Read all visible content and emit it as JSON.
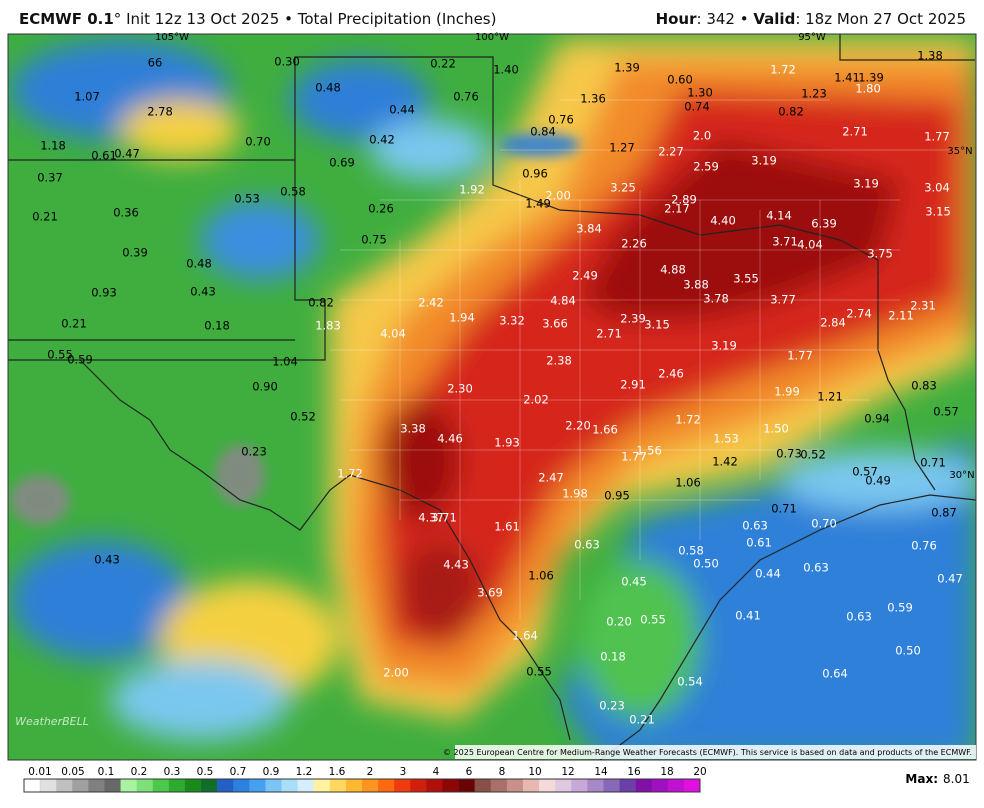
{
  "header": {
    "model": "ECMWF 0.1",
    "degree": "°",
    "run": "Init 12z 13 Oct 2025",
    "separator": "•",
    "field": "Total Precipitation (Inches)",
    "hour_label": "Hour",
    "hour": "342",
    "valid_label": "Valid",
    "valid": "18z Mon 27 Oct 2025"
  },
  "map": {
    "longitude_labels": [
      "105°W",
      "100°W",
      "95°W"
    ],
    "latitude_labels": [
      "35°N",
      "30°N"
    ],
    "point_values": [
      "0.30",
      "0.22",
      "1.40",
      "1.39",
      "1.72",
      "1.41",
      "1.39",
      "1.38",
      "66",
      "1.07",
      "2.78",
      "0.48",
      "0.76",
      "1.36",
      "0.60",
      "1.30",
      "1.23",
      "1.80",
      "0.44",
      "0.74",
      "0.82",
      "0.76",
      "0.84",
      "0.70",
      "0.42",
      "1.18",
      "0.61",
      "0.47",
      "2.71",
      "1.77",
      "1.27",
      "2.27",
      "2.0",
      "0.69",
      "3.19",
      "2.59",
      "0.37",
      "0.96",
      "3.25",
      "3.19",
      "3.04",
      "1.92",
      "2.00",
      "0.58",
      "0.53",
      "1.49",
      "2.89",
      "2.17",
      "3.15",
      "0.21",
      "0.36",
      "0.26",
      "4.40",
      "4.14",
      "6.39",
      "3.84",
      "0.75",
      "2.26",
      "3.71",
      "4.04",
      "3.75",
      "0.39",
      "0.48",
      "4.88",
      "2.49",
      "3.55",
      "3.88",
      "0.93",
      "0.43",
      "4.84",
      "3.78",
      "3.77",
      "2.31",
      "0.82",
      "2.42",
      "1.94",
      "3.32",
      "3.66",
      "2.39",
      "3.15",
      "2.74",
      "2.11",
      "2.84",
      "0.21",
      "0.18",
      "1.83",
      "4.04",
      "2.71",
      "3.19",
      "0.55",
      "0.59",
      "1.04",
      "2.38",
      "1.77",
      "2.46",
      "2.91",
      "0.83",
      "0.90",
      "2.30",
      "1.99",
      "1.21",
      "2.02",
      "0.57",
      "0.52",
      "1.72",
      "0.94",
      "3.38",
      "2.20",
      "1.66",
      "1.50",
      "4.46",
      "1.93",
      "1.53",
      "1.56",
      "1.77",
      "0.73",
      "0.52",
      "0.23",
      "1.42",
      "0.71",
      "0.57",
      "0.49",
      "1.72",
      "2.47",
      "1.06",
      "1.98",
      "0.95",
      "4.37",
      "3.71",
      "0.71",
      "0.87",
      "1.61",
      "0.63",
      "0.70",
      "0.43",
      "4.43",
      "0.63",
      "0.61",
      "0.76",
      "0.58",
      "0.50",
      "1.06",
      "0.44",
      "0.63",
      "0.47",
      "0.45",
      "3.69",
      "0.41",
      "0.59",
      "0.63",
      "0.20",
      "0.55",
      "1.64",
      "0.18",
      "0.50",
      "0.55",
      "2.00",
      "0.54",
      "0.64",
      "0.23",
      "0.21"
    ],
    "watermark": "WeatherBELL",
    "copyright": "© 2025 European Centre for Medium-Range Weather Forecasts (ECMWF). This service is based on data and products of the ECMWF."
  },
  "legend": {
    "ticks": [
      "0.01",
      "0.05",
      "0.1",
      "0.2",
      "0.3",
      "0.5",
      "0.7",
      "0.9",
      "1.2",
      "1.6",
      "2",
      "3",
      "4",
      "6",
      "8",
      "10",
      "12",
      "14",
      "16",
      "18",
      "20"
    ]
  },
  "max": {
    "label": "Max",
    "separator": ":",
    "value": "8.01"
  }
}
